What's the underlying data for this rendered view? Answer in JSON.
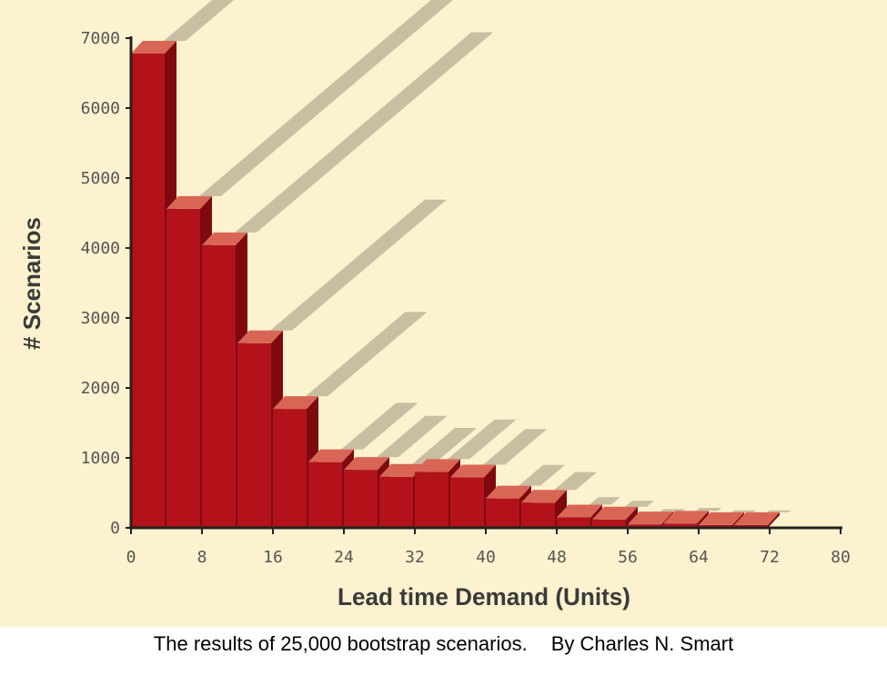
{
  "chart_data": {
    "type": "bar",
    "title": "",
    "xlabel": "Lead time Demand (Units)",
    "ylabel": "# Scenarios",
    "xlim": [
      0,
      80
    ],
    "ylim": [
      0,
      7000
    ],
    "x_ticks": [
      0,
      8,
      16,
      24,
      32,
      40,
      48,
      56,
      64,
      72,
      80
    ],
    "y_ticks": [
      0,
      1000,
      2000,
      3000,
      4000,
      5000,
      6000,
      7000
    ],
    "bar_width": 4,
    "x": [
      0,
      4,
      8,
      12,
      16,
      20,
      24,
      28,
      32,
      36,
      40,
      44,
      48,
      52,
      56,
      60,
      64,
      68
    ],
    "values": [
      6780,
      4560,
      4040,
      2640,
      1700,
      940,
      830,
      730,
      800,
      720,
      420,
      360,
      150,
      120,
      50,
      60,
      40,
      40
    ],
    "bar_color": "#b3121b",
    "bar_top_color": "#d96655",
    "bar_side_color": "#7e0a10",
    "background_color": "#fdf2cf",
    "shadow_color": "#bfb49a",
    "grid": false
  },
  "caption": {
    "text": "The results of 25,000 bootstrap scenarios.",
    "author": "By Charles N. Smart"
  }
}
